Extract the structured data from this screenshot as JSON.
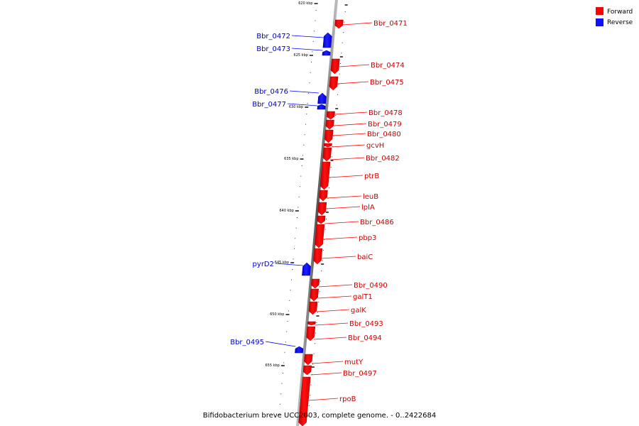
{
  "legend": {
    "forward": {
      "label": "Forward",
      "color": "#ff0000"
    },
    "reverse": {
      "label": "Reverse",
      "color": "#1010ff"
    }
  },
  "colors": {
    "forward_label": "#cc0000",
    "reverse_label": "#0000cc",
    "axis": "#888888"
  },
  "caption": "Bifidobacterium breve UCC2003, complete genome. - 0..2422684",
  "ticks": [
    "620 kbp",
    "625 kbp",
    "630 kbp",
    "635 kbp",
    "640 kbp",
    "645 kbp",
    "650 kbp",
    "655 kbp"
  ],
  "genes": [
    {
      "name": "Bbr_0471",
      "strand": "forward"
    },
    {
      "name": "Bbr_0472",
      "strand": "reverse"
    },
    {
      "name": "Bbr_0473",
      "strand": "reverse"
    },
    {
      "name": "Bbr_0474",
      "strand": "forward"
    },
    {
      "name": "Bbr_0475",
      "strand": "forward"
    },
    {
      "name": "Bbr_0476",
      "strand": "reverse"
    },
    {
      "name": "Bbr_0477",
      "strand": "reverse"
    },
    {
      "name": "Bbr_0478",
      "strand": "forward"
    },
    {
      "name": "Bbr_0479",
      "strand": "forward"
    },
    {
      "name": "Bbr_0480",
      "strand": "forward"
    },
    {
      "name": "gcvH",
      "strand": "forward"
    },
    {
      "name": "Bbr_0482",
      "strand": "forward"
    },
    {
      "name": "ptrB",
      "strand": "forward"
    },
    {
      "name": "leuB",
      "strand": "forward"
    },
    {
      "name": "lplA",
      "strand": "forward"
    },
    {
      "name": "Bbr_0486",
      "strand": "forward"
    },
    {
      "name": "pbp3",
      "strand": "forward"
    },
    {
      "name": "baiC",
      "strand": "forward"
    },
    {
      "name": "pyrD2",
      "strand": "reverse"
    },
    {
      "name": "Bbr_0490",
      "strand": "forward"
    },
    {
      "name": "galT1",
      "strand": "forward"
    },
    {
      "name": "galK",
      "strand": "forward"
    },
    {
      "name": "Bbr_0493",
      "strand": "forward"
    },
    {
      "name": "Bbr_0494",
      "strand": "forward"
    },
    {
      "name": "Bbr_0495",
      "strand": "reverse"
    },
    {
      "name": "mutY",
      "strand": "forward"
    },
    {
      "name": "Bbr_0497",
      "strand": "forward"
    },
    {
      "name": "rpoB",
      "strand": "forward"
    }
  ]
}
